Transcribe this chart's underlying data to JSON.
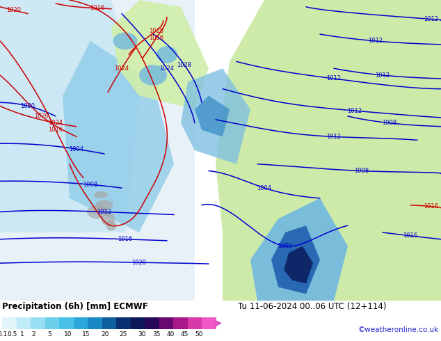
{
  "title_left": "Precipitation (6h) [mm] ECMWF",
  "title_right": "Tu 11-06-2024 00..06 UTC (12+114)",
  "credit": "©weatheronline.co.uk",
  "colorbar_labels": [
    "0.1",
    "0.5",
    "1",
    "2",
    "5",
    "10",
    "15",
    "20",
    "25",
    "30",
    "35",
    "40",
    "45",
    "50"
  ],
  "cbar_colors": [
    "#d4f0f8",
    "#b8e8f5",
    "#96daf0",
    "#70ccea",
    "#48bde3",
    "#28a8d8",
    "#1888c0",
    "#0868a0",
    "#084880",
    "#1a1a6e",
    "#3d1060",
    "#6e0f78",
    "#a01088",
    "#c81890",
    "#e030a8",
    "#f050c0",
    "#f870d0"
  ],
  "bg_color": "#ffffff",
  "fig_width": 6.34,
  "fig_height": 4.9,
  "dpi": 100,
  "map_colors": {
    "ocean_light": "#e8f4fb",
    "ocean_mid": "#cce8f5",
    "rain_light": "#b0ddf0",
    "rain_mid": "#80c8e8",
    "rain_heavy": "#4090c8",
    "rain_dark": "#1050a0",
    "land_green_light": "#d8eecc",
    "land_green": "#b8e0a0",
    "land_grey": "#c8c8c8",
    "precipitation_purple": "#6030a0",
    "precipitation_magenta": "#c030c0"
  }
}
